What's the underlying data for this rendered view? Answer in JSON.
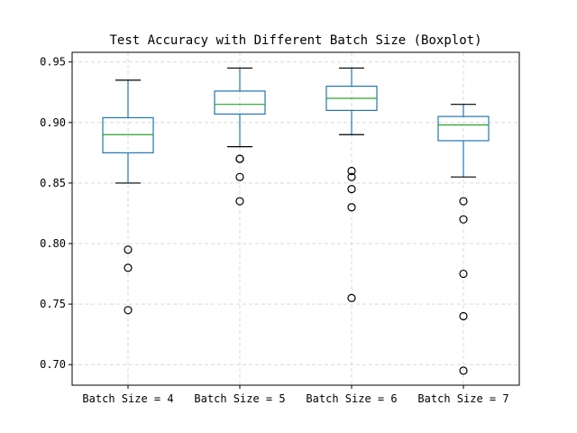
{
  "chart_data": {
    "type": "box",
    "title": "Test Accuracy with Different Batch Size (Boxplot)",
    "xlabel": "",
    "ylabel": "",
    "ylim": [
      0.683,
      0.958
    ],
    "yticks": [
      0.7,
      0.75,
      0.8,
      0.85,
      0.9,
      0.95
    ],
    "ytick_labels": [
      "0.70",
      "0.75",
      "0.80",
      "0.85",
      "0.90",
      "0.95"
    ],
    "grid": true,
    "categories": [
      "Batch Size = 4",
      "Batch Size = 5",
      "Batch Size = 6",
      "Batch Size = 7"
    ],
    "boxes": [
      {
        "whisker_low": 0.85,
        "q1": 0.875,
        "median": 0.89,
        "q3": 0.904,
        "whisker_high": 0.935,
        "outliers": [
          0.795,
          0.78,
          0.745
        ]
      },
      {
        "whisker_low": 0.88,
        "q1": 0.907,
        "median": 0.915,
        "q3": 0.926,
        "whisker_high": 0.945,
        "outliers": [
          0.87,
          0.87,
          0.855,
          0.835
        ]
      },
      {
        "whisker_low": 0.89,
        "q1": 0.91,
        "median": 0.92,
        "q3": 0.93,
        "whisker_high": 0.945,
        "outliers": [
          0.86,
          0.855,
          0.845,
          0.83,
          0.755
        ]
      },
      {
        "whisker_low": 0.855,
        "q1": 0.885,
        "median": 0.898,
        "q3": 0.905,
        "whisker_high": 0.915,
        "outliers": [
          0.835,
          0.82,
          0.775,
          0.74,
          0.695
        ]
      }
    ],
    "colors": {
      "box": "#1f77b4",
      "median": "#2ca02c",
      "outlier": "#000000",
      "grid": "#d9d9d9"
    }
  }
}
